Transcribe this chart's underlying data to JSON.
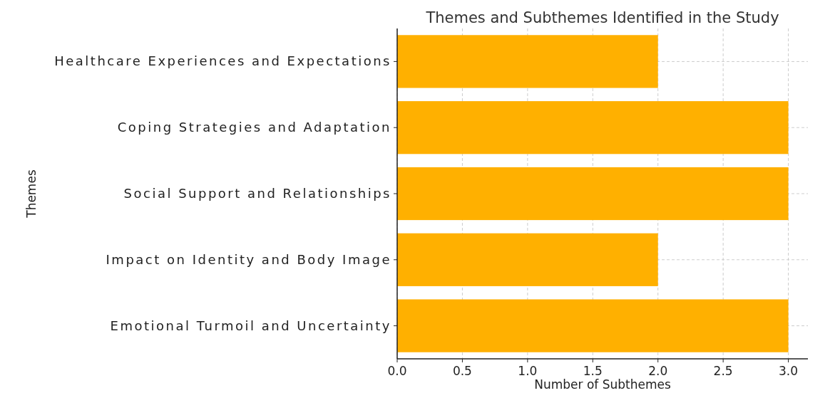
{
  "chart_data": {
    "type": "bar",
    "orientation": "horizontal",
    "title": "Themes and Subthemes Identified in the Study",
    "xlabel": "Number of Subthemes",
    "ylabel": "Themes",
    "categories": [
      "Healthcare Experiences and Expectations",
      "Coping Strategies and Adaptation",
      "Social Support and Relationships",
      "Impact on Identity and Body Image",
      "Emotional Turmoil and Uncertainty"
    ],
    "values": [
      2,
      3,
      3,
      2,
      3
    ],
    "color": "#ffb000",
    "xlim": [
      0,
      3.15
    ],
    "xticks": [
      {
        "value": 0,
        "label": "0.0"
      },
      {
        "value": 0.5,
        "label": "0.5"
      },
      {
        "value": 1,
        "label": "1.0"
      },
      {
        "value": 1.5,
        "label": "1.5"
      },
      {
        "value": 2,
        "label": "2.0"
      },
      {
        "value": 2.5,
        "label": "2.5"
      },
      {
        "value": 3,
        "label": "3.0"
      }
    ],
    "grid": true
  }
}
